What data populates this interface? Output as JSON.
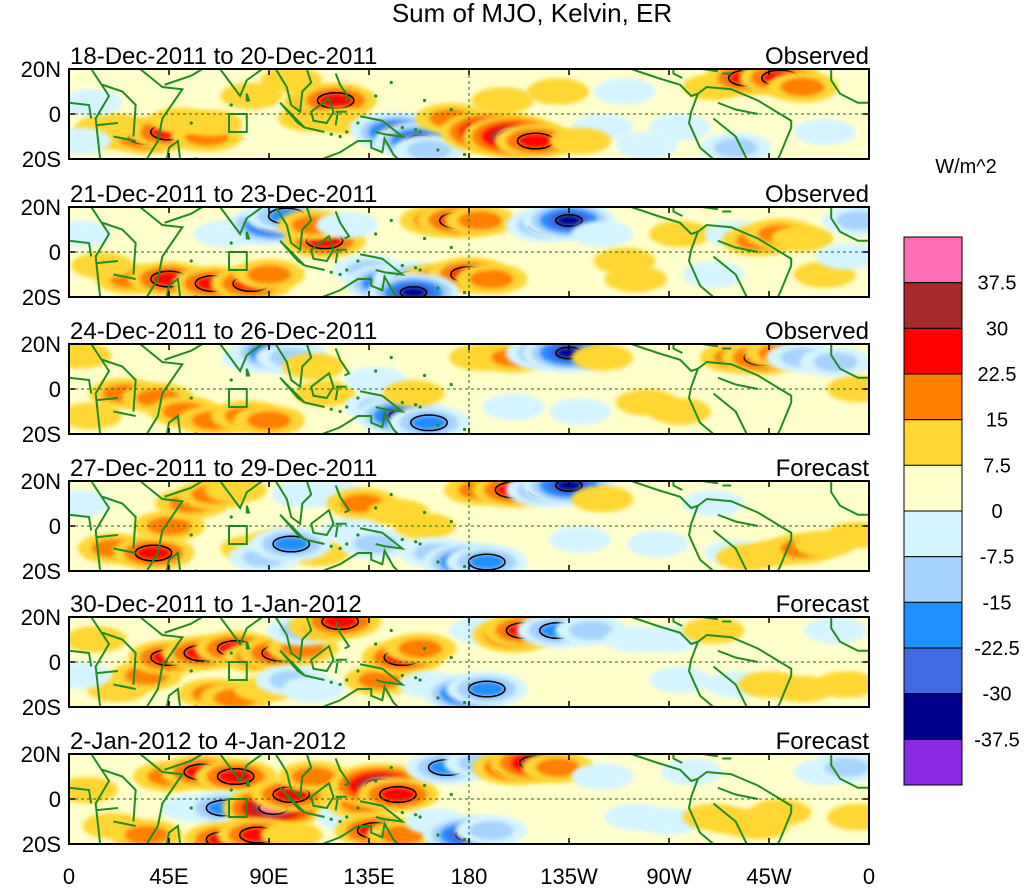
{
  "chart_data": {
    "type": "heatmap",
    "title": "Sum of MJO, Kelvin, ER",
    "colorbar": {
      "units": "W/m^2",
      "levels": [
        "37.5",
        "30",
        "22.5",
        "15",
        "7.5",
        "0",
        "-7.5",
        "-15",
        "-22.5",
        "-30",
        "-37.5"
      ],
      "colors": [
        "#ff6eb4",
        "#a52a2a",
        "#ff0000",
        "#ff7f00",
        "#ffd633",
        "#ffffcc",
        "#d4f4ff",
        "#a6d3ff",
        "#1e90ff",
        "#4169e1",
        "#00008b",
        "#8a2be2"
      ]
    },
    "x_ticks": [
      "0",
      "45E",
      "90E",
      "135E",
      "180",
      "135W",
      "90W",
      "45W",
      "0"
    ],
    "y_ticks": [
      "20N",
      "0",
      "20S"
    ],
    "panels": [
      {
        "period": "18-Dec-2011 to 20-Dec-2011",
        "status": "Observed",
        "blobs": [
          [
            20,
            -8,
            3
          ],
          [
            35,
            -10,
            3
          ],
          [
            45,
            -8,
            3
          ],
          [
            62,
            -10,
            2
          ],
          [
            64,
            -4,
            1
          ],
          [
            18,
            -6,
            1
          ],
          [
            50,
            -3,
            1
          ],
          [
            82,
            8,
            1
          ],
          [
            100,
            15,
            1
          ],
          [
            108,
            -2,
            1
          ],
          [
            115,
            5,
            3
          ],
          [
            120,
            6,
            3
          ],
          [
            123,
            -3,
            1
          ],
          [
            140,
            -6,
            -1
          ],
          [
            148,
            -8,
            -4
          ],
          [
            158,
            -12,
            -4
          ],
          [
            162,
            -16,
            -2
          ],
          [
            172,
            -2,
            2
          ],
          [
            190,
            -8,
            5
          ],
          [
            200,
            -10,
            5
          ],
          [
            210,
            -12,
            3
          ],
          [
            195,
            6,
            1
          ],
          [
            240,
            -6,
            -1
          ],
          [
            260,
            -14,
            -1
          ],
          [
            275,
            -6,
            -1
          ],
          [
            290,
            12,
            1
          ],
          [
            300,
            -15,
            -2
          ],
          [
            305,
            16,
            3
          ],
          [
            320,
            16,
            3
          ],
          [
            330,
            12,
            2
          ],
          [
            340,
            -8,
            -1
          ],
          [
            10,
            5,
            -1
          ],
          [
            5,
            -12,
            -1
          ],
          [
            250,
            10,
            -1
          ],
          [
            230,
            -12,
            1
          ],
          [
            220,
            10,
            1
          ]
        ]
      },
      {
        "period": "21-Dec-2011 to 23-Dec-2011",
        "status": "Observed",
        "blobs": [
          [
            28,
            -12,
            2
          ],
          [
            45,
            -12,
            3
          ],
          [
            65,
            -14,
            3
          ],
          [
            82,
            -14,
            3
          ],
          [
            90,
            -10,
            2
          ],
          [
            70,
            8,
            -1
          ],
          [
            84,
            10,
            -2
          ],
          [
            92,
            12,
            -4
          ],
          [
            98,
            16,
            -3
          ],
          [
            115,
            5,
            3
          ],
          [
            110,
            12,
            2
          ],
          [
            125,
            12,
            -1
          ],
          [
            135,
            -8,
            -2
          ],
          [
            145,
            -14,
            -4
          ],
          [
            155,
            -12,
            -3
          ],
          [
            165,
            -12,
            2
          ],
          [
            180,
            -10,
            3
          ],
          [
            190,
            -12,
            2
          ],
          [
            155,
            -18,
            -4
          ],
          [
            165,
            14,
            2
          ],
          [
            175,
            14,
            3
          ],
          [
            185,
            14,
            2
          ],
          [
            215,
            12,
            -3
          ],
          [
            225,
            14,
            -4
          ],
          [
            240,
            8,
            -1
          ],
          [
            250,
            -4,
            1
          ],
          [
            255,
            -12,
            1
          ],
          [
            275,
            8,
            1
          ],
          [
            290,
            -10,
            -1
          ],
          [
            300,
            8,
            -1
          ],
          [
            310,
            5,
            2
          ],
          [
            320,
            8,
            2
          ],
          [
            330,
            6,
            1
          ],
          [
            340,
            -10,
            1
          ],
          [
            350,
            -2,
            -1
          ],
          [
            355,
            14,
            -2
          ],
          [
            5,
            8,
            -1
          ],
          [
            15,
            -6,
            1
          ]
        ]
      },
      {
        "period": "24-Dec-2011 to 26-Dec-2011",
        "status": "Observed",
        "blobs": [
          [
            25,
            -2,
            2
          ],
          [
            40,
            -4,
            2
          ],
          [
            52,
            -10,
            2
          ],
          [
            65,
            -14,
            2
          ],
          [
            80,
            -12,
            2
          ],
          [
            90,
            -14,
            2
          ],
          [
            85,
            14,
            -2
          ],
          [
            94,
            16,
            -4
          ],
          [
            100,
            14,
            -2
          ],
          [
            110,
            10,
            1
          ],
          [
            115,
            -2,
            1
          ],
          [
            140,
            -8,
            -2
          ],
          [
            150,
            -12,
            -4
          ],
          [
            162,
            -15,
            -3
          ],
          [
            138,
            4,
            -1
          ],
          [
            155,
            -2,
            1
          ],
          [
            185,
            14,
            1
          ],
          [
            200,
            14,
            2
          ],
          [
            215,
            16,
            -3
          ],
          [
            225,
            16,
            -4
          ],
          [
            240,
            14,
            1
          ],
          [
            260,
            -6,
            1
          ],
          [
            275,
            -10,
            1
          ],
          [
            300,
            14,
            2
          ],
          [
            312,
            14,
            3
          ],
          [
            320,
            16,
            2
          ],
          [
            330,
            14,
            -2
          ],
          [
            345,
            12,
            -2
          ],
          [
            355,
            0,
            1
          ],
          [
            10,
            -12,
            1
          ],
          [
            5,
            15,
            1
          ],
          [
            230,
            -10,
            -1
          ],
          [
            200,
            -8,
            -1
          ]
        ]
      },
      {
        "period": "27-Dec-2011 to 29-Dec-2011",
        "status": "Forecast",
        "blobs": [
          [
            20,
            -10,
            2
          ],
          [
            38,
            -12,
            3
          ],
          [
            45,
            0,
            2
          ],
          [
            55,
            10,
            2
          ],
          [
            65,
            14,
            2
          ],
          [
            75,
            16,
            1
          ],
          [
            82,
            -10,
            1
          ],
          [
            95,
            -8,
            2
          ],
          [
            112,
            -12,
            1
          ],
          [
            88,
            -14,
            -2
          ],
          [
            100,
            -8,
            -3
          ],
          [
            105,
            14,
            -1
          ],
          [
            120,
            14,
            -1
          ],
          [
            128,
            -2,
            -1
          ],
          [
            138,
            -8,
            -2
          ],
          [
            132,
            10,
            2
          ],
          [
            148,
            6,
            1
          ],
          [
            160,
            0,
            1
          ],
          [
            165,
            -12,
            -2
          ],
          [
            180,
            -16,
            -4
          ],
          [
            188,
            -16,
            -3
          ],
          [
            185,
            16,
            2
          ],
          [
            200,
            16,
            3
          ],
          [
            215,
            16,
            -3
          ],
          [
            225,
            18,
            -4
          ],
          [
            240,
            12,
            1
          ],
          [
            265,
            -8,
            -1
          ],
          [
            290,
            10,
            -1
          ],
          [
            300,
            -12,
            -1
          ],
          [
            305,
            -14,
            1
          ],
          [
            318,
            -12,
            1
          ],
          [
            330,
            -10,
            2
          ],
          [
            340,
            -8,
            1
          ],
          [
            355,
            -4,
            1
          ],
          [
            5,
            10,
            -1
          ],
          [
            230,
            -6,
            -1
          ]
        ]
      },
      {
        "period": "30-Dec-2011 to 1-Jan-2012",
        "status": "Forecast",
        "blobs": [
          [
            22,
            -12,
            1
          ],
          [
            35,
            -6,
            2
          ],
          [
            45,
            2,
            3
          ],
          [
            60,
            4,
            3
          ],
          [
            75,
            6,
            3
          ],
          [
            85,
            2,
            2
          ],
          [
            95,
            4,
            3
          ],
          [
            105,
            6,
            2
          ],
          [
            65,
            -14,
            2
          ],
          [
            75,
            -16,
            2
          ],
          [
            88,
            -12,
            1
          ],
          [
            100,
            -8,
            -2
          ],
          [
            110,
            -12,
            -1
          ],
          [
            105,
            14,
            -2
          ],
          [
            115,
            16,
            2
          ],
          [
            122,
            18,
            3
          ],
          [
            140,
            -8,
            2
          ],
          [
            150,
            2,
            3
          ],
          [
            158,
            6,
            2
          ],
          [
            162,
            -10,
            -1
          ],
          [
            180,
            -14,
            -4
          ],
          [
            188,
            -12,
            -3
          ],
          [
            185,
            14,
            -1
          ],
          [
            200,
            12,
            3
          ],
          [
            205,
            14,
            3
          ],
          [
            220,
            14,
            -3
          ],
          [
            235,
            14,
            -2
          ],
          [
            255,
            10,
            -1
          ],
          [
            270,
            10,
            -1
          ],
          [
            275,
            -8,
            -1
          ],
          [
            290,
            14,
            1
          ],
          [
            300,
            -10,
            -1
          ],
          [
            315,
            -10,
            1
          ],
          [
            330,
            -12,
            1
          ],
          [
            345,
            14,
            -1
          ],
          [
            350,
            -10,
            1
          ],
          [
            5,
            -6,
            -1
          ],
          [
            12,
            10,
            1
          ]
        ]
      },
      {
        "period": "2-Jan-2012 to 4-Jan-2012",
        "status": "Forecast",
        "blobs": [
          [
            20,
            -12,
            1
          ],
          [
            35,
            -16,
            2
          ],
          [
            45,
            10,
            2
          ],
          [
            60,
            12,
            3
          ],
          [
            75,
            10,
            3
          ],
          [
            55,
            -4,
            -1
          ],
          [
            70,
            -4,
            -3
          ],
          [
            80,
            -14,
            -2
          ],
          [
            92,
            -4,
            5
          ],
          [
            100,
            2,
            3
          ],
          [
            110,
            10,
            2
          ],
          [
            70,
            -18,
            3
          ],
          [
            85,
            -16,
            3
          ],
          [
            100,
            -16,
            1
          ],
          [
            125,
            -8,
            -1
          ],
          [
            132,
            -2,
            2
          ],
          [
            140,
            6,
            5
          ],
          [
            148,
            2,
            3
          ],
          [
            138,
            -14,
            3
          ],
          [
            150,
            -16,
            2
          ],
          [
            165,
            -10,
            -1
          ],
          [
            180,
            -16,
            -4
          ],
          [
            190,
            -14,
            -2
          ],
          [
            170,
            14,
            -3
          ],
          [
            185,
            16,
            -2
          ],
          [
            200,
            14,
            3
          ],
          [
            210,
            16,
            4
          ],
          [
            220,
            14,
            2
          ],
          [
            240,
            10,
            -1
          ],
          [
            255,
            -8,
            -1
          ],
          [
            270,
            -10,
            -1
          ],
          [
            280,
            12,
            -1
          ],
          [
            290,
            -8,
            1
          ],
          [
            300,
            -10,
            1
          ],
          [
            310,
            -12,
            1
          ],
          [
            320,
            -6,
            1
          ],
          [
            340,
            12,
            -1
          ],
          [
            350,
            14,
            -2
          ],
          [
            355,
            -8,
            1
          ],
          [
            8,
            4,
            1
          ]
        ]
      }
    ]
  }
}
